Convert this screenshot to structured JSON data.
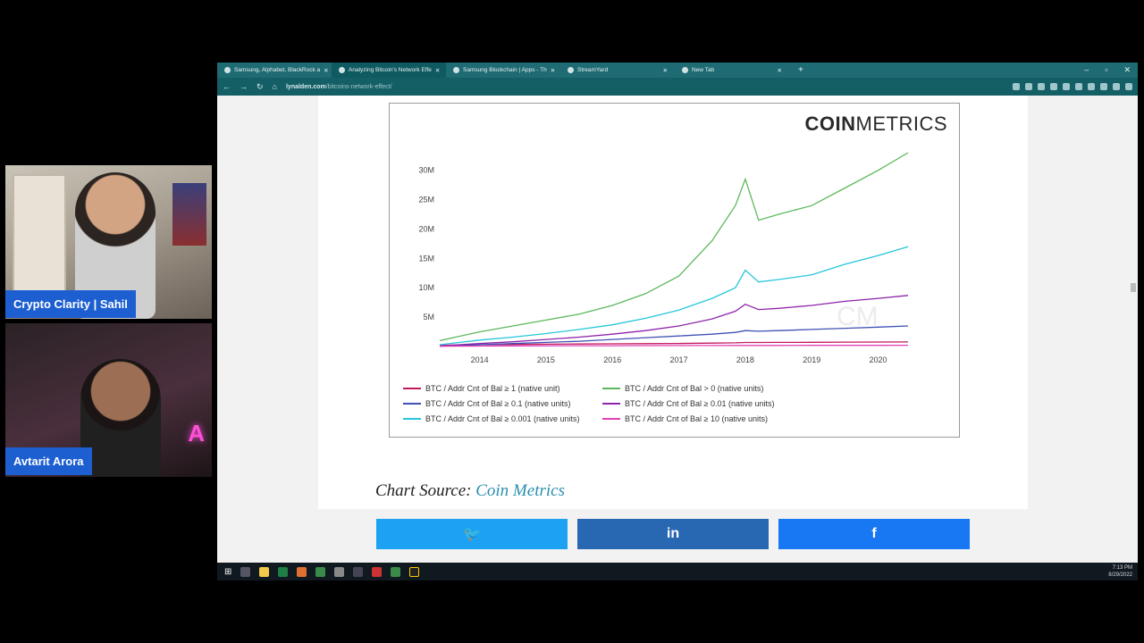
{
  "webcams": [
    {
      "name": "Crypto Clarity | Sahil"
    },
    {
      "name": "Avtarit Arora",
      "neon": "A"
    }
  ],
  "browser": {
    "tabs": [
      {
        "title": "Samsung, Alphabet, BlackRock a",
        "active": false
      },
      {
        "title": "Analyzing Bitcoin's Network Effe",
        "active": true
      },
      {
        "title": "Samsung Blockchain | Apps - Th",
        "active": false
      },
      {
        "title": "StreamYard",
        "active": false
      },
      {
        "title": "New Tab",
        "active": false
      }
    ],
    "new_tab": "+",
    "url_domain": "lynalden.com",
    "url_path": "/bitcoins-network-effect/"
  },
  "chart_logo": {
    "bold": "COIN",
    "light": "METRICS",
    "watermark": "CM"
  },
  "chart_data": {
    "type": "line",
    "title": "",
    "xlabel": "",
    "ylabel": "",
    "x_ticks": [
      "2014",
      "2015",
      "2016",
      "2017",
      "2018",
      "2019",
      "2020"
    ],
    "y_ticks": [
      "5M",
      "10M",
      "15M",
      "20M",
      "25M",
      "30M"
    ],
    "x": [
      2013.4,
      2014,
      2014.5,
      2015,
      2015.5,
      2016,
      2016.5,
      2017,
      2017.5,
      2017.85,
      2018,
      2018.2,
      2018.5,
      2019,
      2019.5,
      2020,
      2020.45
    ],
    "ylim": [
      0,
      33000000
    ],
    "grid": false,
    "legend_position": "bottom",
    "series": [
      {
        "name": "BTC / Addr Cnt of Bal ≥ 1 (native unit)",
        "color": "#c2185b",
        "values": [
          200000,
          300000,
          350000,
          400000,
          420000,
          450000,
          480000,
          520000,
          580000,
          620000,
          680000,
          690000,
          700000,
          720000,
          740000,
          760000,
          780000
        ]
      },
      {
        "name": "BTC / Addr Cnt of Bal > 0 (native units)",
        "color": "#5cb85c",
        "values": [
          1000000,
          2500000,
          3500000,
          4500000,
          5500000,
          7000000,
          9000000,
          12000000,
          18000000,
          24000000,
          28500000,
          21500000,
          22500000,
          24000000,
          27000000,
          30000000,
          33000000
        ]
      },
      {
        "name": "BTC / Addr Cnt of Bal ≥ 0.1 (native units)",
        "color": "#3f51b5",
        "values": [
          50000,
          300000,
          500000,
          700000,
          900000,
          1200000,
          1500000,
          1800000,
          2100000,
          2400000,
          2700000,
          2600000,
          2700000,
          2900000,
          3100000,
          3300000,
          3500000
        ]
      },
      {
        "name": "BTC / Addr Cnt of Bal ≥ 0.01 (native units)",
        "color": "#8e24aa",
        "values": [
          100000,
          500000,
          800000,
          1200000,
          1600000,
          2100000,
          2700000,
          3500000,
          4700000,
          6000000,
          7200000,
          6300000,
          6500000,
          7000000,
          7700000,
          8200000,
          8700000
        ]
      },
      {
        "name": "BTC / Addr Cnt of Bal ≥ 0.001 (native units)",
        "color": "#26c6da",
        "values": [
          300000,
          1100000,
          1600000,
          2200000,
          2900000,
          3700000,
          4800000,
          6200000,
          8200000,
          10000000,
          13000000,
          11000000,
          11400000,
          12200000,
          14000000,
          15500000,
          17000000
        ]
      },
      {
        "name": "BTC / Addr Cnt of Bal ≥ 10 (native units)",
        "color": "#e040b8",
        "values": [
          50000,
          80000,
          100000,
          120000,
          130000,
          140000,
          150000,
          160000,
          170000,
          180000,
          190000,
          190000,
          190000,
          195000,
          200000,
          205000,
          210000
        ]
      }
    ]
  },
  "article": {
    "source_prefix": "Chart Source:",
    "source_link": "Coin Metrics"
  },
  "share_buttons": {
    "twitter": "🐦",
    "linkedin": "in",
    "facebook": "f"
  },
  "taskbar": {
    "time": "7:13 PM",
    "date": "8/29/2022"
  }
}
